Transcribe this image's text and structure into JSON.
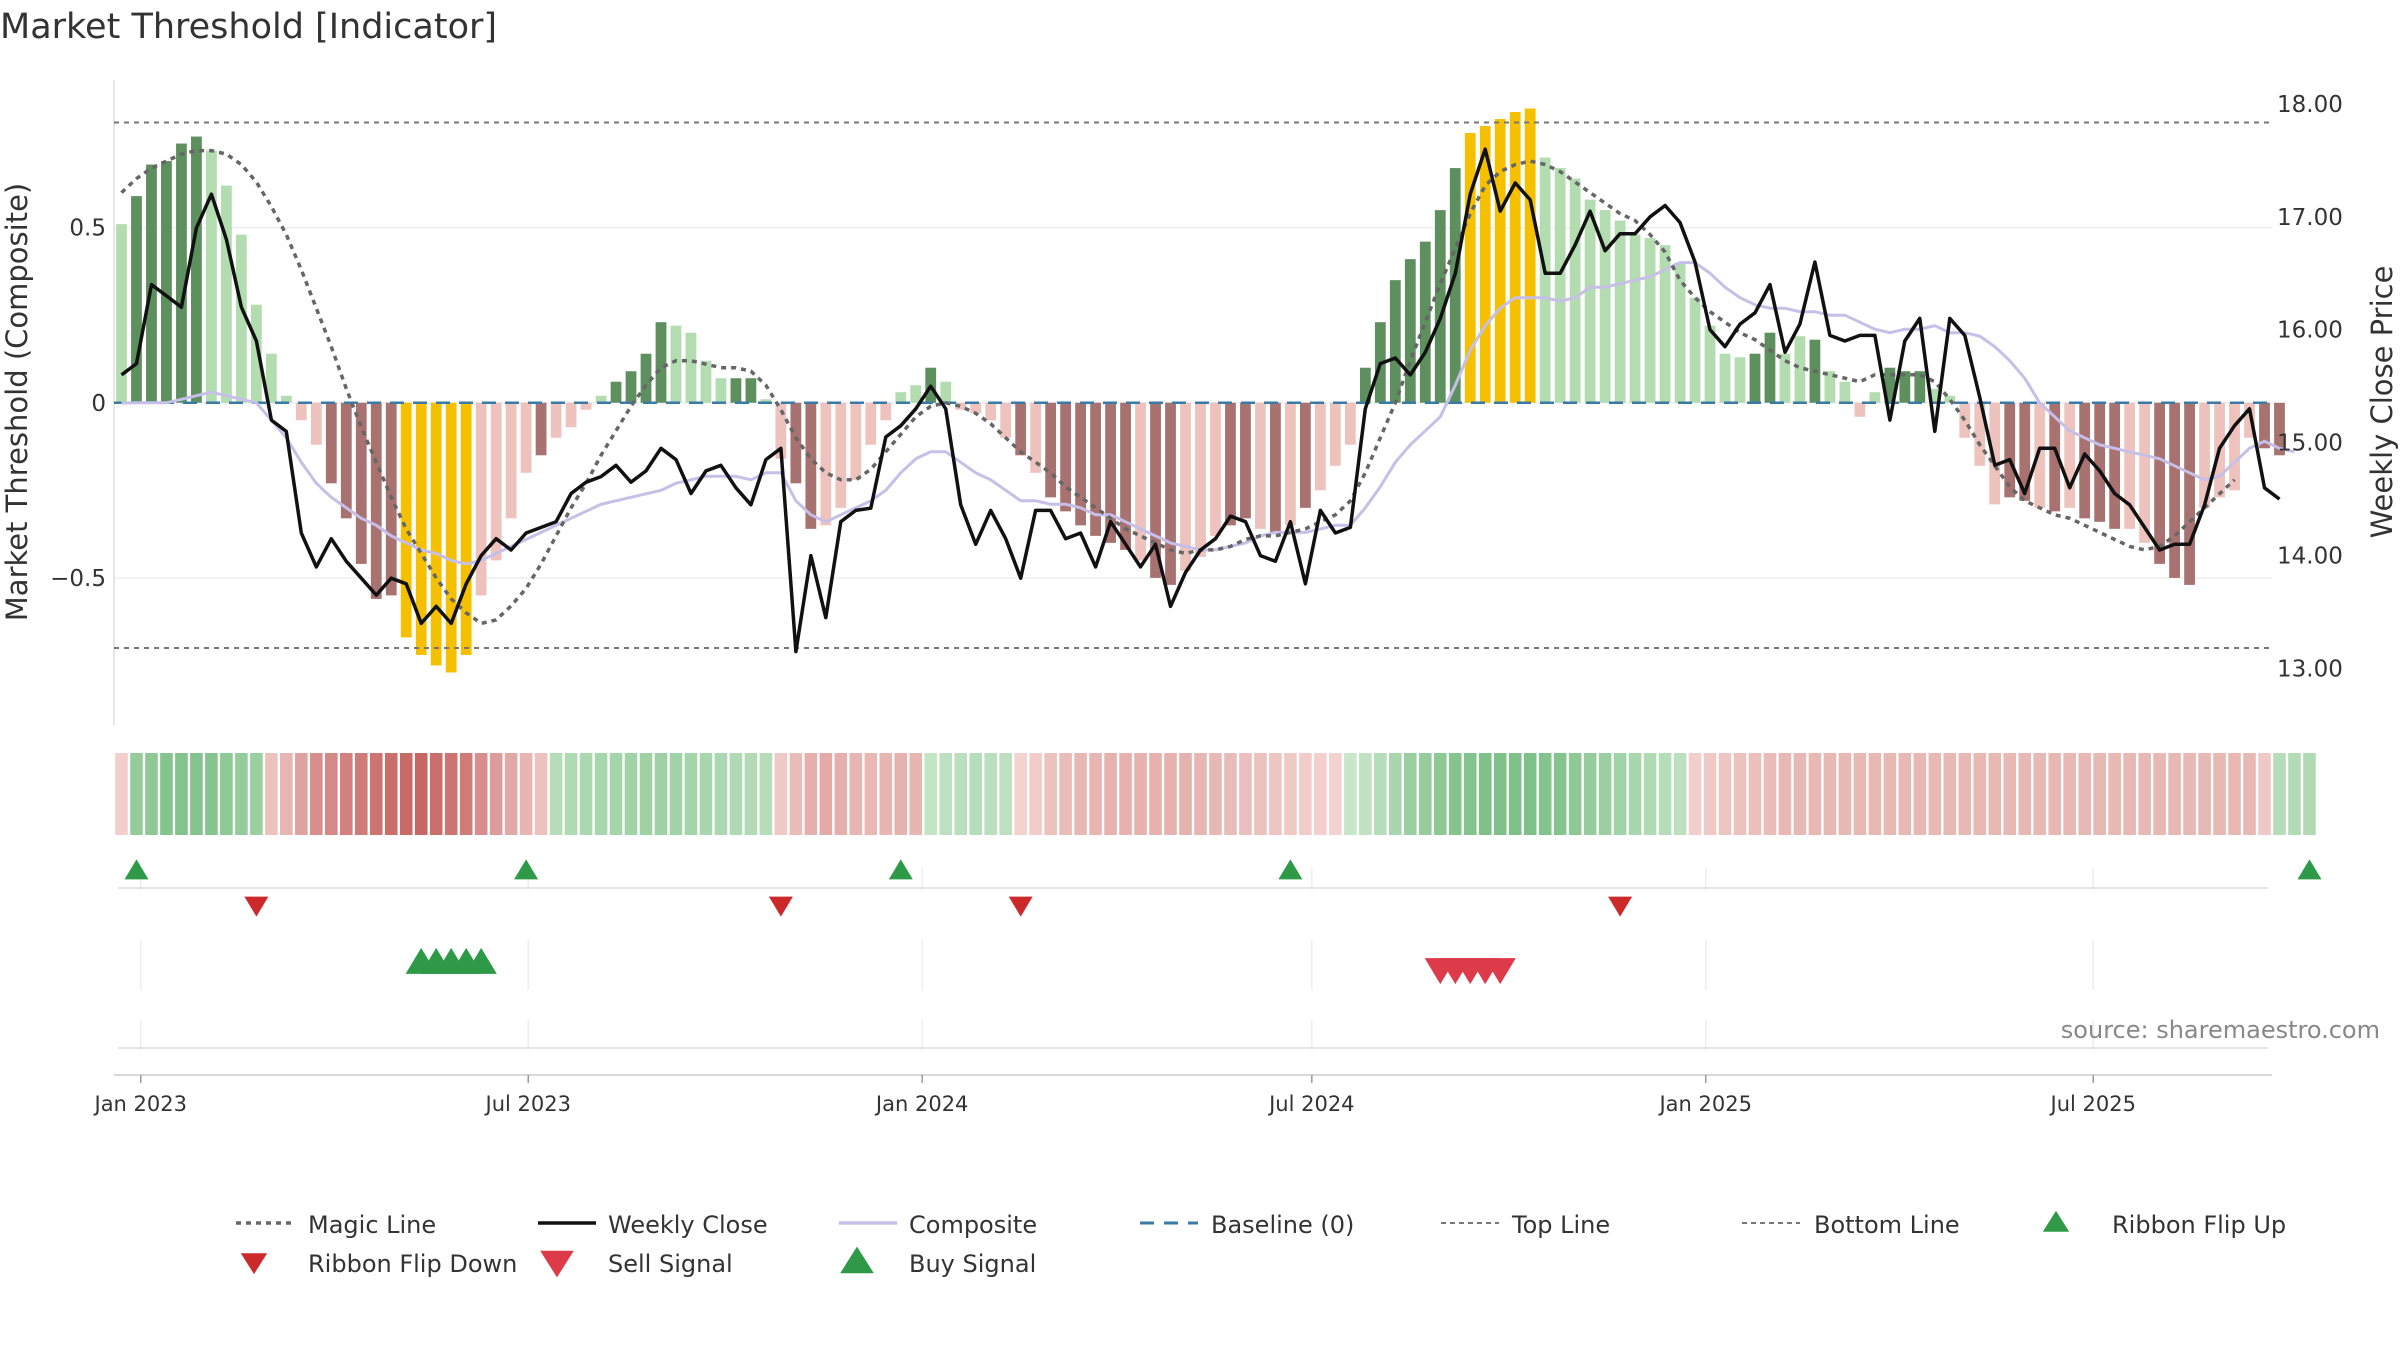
{
  "chart_data": {
    "type": "bar",
    "title": "Market Threshold [Indicator]",
    "ylabel_left": "Market Threshold (Composite)",
    "ylabel_right": "Weekly Close Price",
    "source": "source: sharemaestro.com",
    "left_axis": {
      "ticks": [
        0.5,
        0,
        -0.5
      ],
      "tick_labels": [
        "0.5",
        "0",
        "−0.5"
      ],
      "ylim": [
        -0.92,
        0.95
      ]
    },
    "right_axis": {
      "ticks": [
        18,
        17,
        16,
        15,
        14,
        13
      ],
      "tick_labels": [
        "18.00",
        "17.00",
        "16.00",
        "15.00",
        "14.00",
        "13.00"
      ],
      "ylim": [
        12.5,
        18.3
      ]
    },
    "x_axis": {
      "type": "date",
      "start": "2022-12-23",
      "weeks": 144,
      "ticks": [
        {
          "date": "2023-01-01",
          "label": "Jan 2023"
        },
        {
          "date": "2023-07-01",
          "label": "Jul 2023"
        },
        {
          "date": "2024-01-01",
          "label": "Jan 2024"
        },
        {
          "date": "2024-07-01",
          "label": "Jul 2024"
        },
        {
          "date": "2025-01-01",
          "label": "Jan 2025"
        },
        {
          "date": "2025-07-01",
          "label": "Jul 2025"
        }
      ]
    },
    "reference_lines": {
      "top_line": 0.8,
      "bottom_line": -0.7,
      "baseline": 0
    },
    "colors": {
      "pos_strong": "#5e8f5e",
      "pos_weak": "#b3dcb0",
      "neg_strong": "#a87270",
      "neg_weak": "#eec3bd",
      "extreme": "#f5c000",
      "close": "#111111",
      "composite": "#c6bfe8",
      "magic": "#666666",
      "baseline": "#3a7aa5",
      "ref": "#777777",
      "flip_up": "#2e9a47",
      "flip_down": "#cc2a2a",
      "buy": "#2e9a47",
      "sell": "#dd3a4a"
    },
    "bars": [
      {
        "v": 0.51,
        "c": "w"
      },
      {
        "v": 0.59,
        "c": "s"
      },
      {
        "v": 0.68,
        "c": "s"
      },
      {
        "v": 0.69,
        "c": "s"
      },
      {
        "v": 0.74,
        "c": "s"
      },
      {
        "v": 0.76,
        "c": "s"
      },
      {
        "v": 0.72,
        "c": "w"
      },
      {
        "v": 0.62,
        "c": "w"
      },
      {
        "v": 0.48,
        "c": "w"
      },
      {
        "v": 0.28,
        "c": "w"
      },
      {
        "v": 0.14,
        "c": "w"
      },
      {
        "v": 0.02,
        "c": "w"
      },
      {
        "v": -0.05,
        "c": "w"
      },
      {
        "v": -0.12,
        "c": "w"
      },
      {
        "v": -0.23,
        "c": "s"
      },
      {
        "v": -0.33,
        "c": "s"
      },
      {
        "v": -0.46,
        "c": "s"
      },
      {
        "v": -0.56,
        "c": "s"
      },
      {
        "v": -0.55,
        "c": "s"
      },
      {
        "v": -0.67,
        "c": "e"
      },
      {
        "v": -0.72,
        "c": "e"
      },
      {
        "v": -0.75,
        "c": "e"
      },
      {
        "v": -0.77,
        "c": "e"
      },
      {
        "v": -0.72,
        "c": "e"
      },
      {
        "v": -0.55,
        "c": "w"
      },
      {
        "v": -0.45,
        "c": "w"
      },
      {
        "v": -0.33,
        "c": "w"
      },
      {
        "v": -0.2,
        "c": "w"
      },
      {
        "v": -0.15,
        "c": "s"
      },
      {
        "v": -0.1,
        "c": "w"
      },
      {
        "v": -0.07,
        "c": "w"
      },
      {
        "v": -0.02,
        "c": "w"
      },
      {
        "v": 0.02,
        "c": "w"
      },
      {
        "v": 0.06,
        "c": "s"
      },
      {
        "v": 0.09,
        "c": "s"
      },
      {
        "v": 0.14,
        "c": "s"
      },
      {
        "v": 0.23,
        "c": "s"
      },
      {
        "v": 0.22,
        "c": "w"
      },
      {
        "v": 0.2,
        "c": "w"
      },
      {
        "v": 0.12,
        "c": "w"
      },
      {
        "v": 0.07,
        "c": "w"
      },
      {
        "v": 0.07,
        "c": "s"
      },
      {
        "v": 0.07,
        "c": "s"
      },
      {
        "v": 0.01,
        "c": "w"
      },
      {
        "v": -0.16,
        "c": "w"
      },
      {
        "v": -0.23,
        "c": "s"
      },
      {
        "v": -0.36,
        "c": "s"
      },
      {
        "v": -0.35,
        "c": "w"
      },
      {
        "v": -0.3,
        "c": "w"
      },
      {
        "v": -0.22,
        "c": "w"
      },
      {
        "v": -0.12,
        "c": "w"
      },
      {
        "v": -0.05,
        "c": "w"
      },
      {
        "v": 0.03,
        "c": "w"
      },
      {
        "v": 0.05,
        "c": "w"
      },
      {
        "v": 0.1,
        "c": "s"
      },
      {
        "v": 0.06,
        "c": "w"
      },
      {
        "v": -0.02,
        "c": "w"
      },
      {
        "v": -0.03,
        "c": "w"
      },
      {
        "v": -0.05,
        "c": "w"
      },
      {
        "v": -0.1,
        "c": "w"
      },
      {
        "v": -0.15,
        "c": "s"
      },
      {
        "v": -0.2,
        "c": "w"
      },
      {
        "v": -0.27,
        "c": "s"
      },
      {
        "v": -0.31,
        "c": "s"
      },
      {
        "v": -0.35,
        "c": "s"
      },
      {
        "v": -0.38,
        "c": "s"
      },
      {
        "v": -0.4,
        "c": "s"
      },
      {
        "v": -0.42,
        "c": "s"
      },
      {
        "v": -0.45,
        "c": "w"
      },
      {
        "v": -0.5,
        "c": "s"
      },
      {
        "v": -0.52,
        "c": "s"
      },
      {
        "v": -0.48,
        "c": "w"
      },
      {
        "v": -0.44,
        "c": "w"
      },
      {
        "v": -0.38,
        "c": "w"
      },
      {
        "v": -0.35,
        "c": "s"
      },
      {
        "v": -0.33,
        "c": "s"
      },
      {
        "v": -0.36,
        "c": "w"
      },
      {
        "v": -0.37,
        "c": "s"
      },
      {
        "v": -0.35,
        "c": "w"
      },
      {
        "v": -0.3,
        "c": "s"
      },
      {
        "v": -0.25,
        "c": "w"
      },
      {
        "v": -0.18,
        "c": "w"
      },
      {
        "v": -0.12,
        "c": "w"
      },
      {
        "v": 0.1,
        "c": "s"
      },
      {
        "v": 0.23,
        "c": "s"
      },
      {
        "v": 0.35,
        "c": "s"
      },
      {
        "v": 0.41,
        "c": "s"
      },
      {
        "v": 0.46,
        "c": "s"
      },
      {
        "v": 0.55,
        "c": "s"
      },
      {
        "v": 0.67,
        "c": "s"
      },
      {
        "v": 0.77,
        "c": "e"
      },
      {
        "v": 0.79,
        "c": "e"
      },
      {
        "v": 0.81,
        "c": "e"
      },
      {
        "v": 0.83,
        "c": "e"
      },
      {
        "v": 0.84,
        "c": "e"
      },
      {
        "v": 0.7,
        "c": "w"
      },
      {
        "v": 0.67,
        "c": "w"
      },
      {
        "v": 0.64,
        "c": "w"
      },
      {
        "v": 0.58,
        "c": "w"
      },
      {
        "v": 0.55,
        "c": "w"
      },
      {
        "v": 0.52,
        "c": "w"
      },
      {
        "v": 0.48,
        "c": "w"
      },
      {
        "v": 0.47,
        "c": "w"
      },
      {
        "v": 0.45,
        "c": "w"
      },
      {
        "v": 0.4,
        "c": "w"
      },
      {
        "v": 0.3,
        "c": "w"
      },
      {
        "v": 0.22,
        "c": "w"
      },
      {
        "v": 0.14,
        "c": "w"
      },
      {
        "v": 0.13,
        "c": "w"
      },
      {
        "v": 0.14,
        "c": "s"
      },
      {
        "v": 0.2,
        "c": "s"
      },
      {
        "v": 0.14,
        "c": "w"
      },
      {
        "v": 0.19,
        "c": "w"
      },
      {
        "v": 0.18,
        "c": "s"
      },
      {
        "v": 0.09,
        "c": "w"
      },
      {
        "v": 0.06,
        "c": "w"
      },
      {
        "v": -0.04,
        "c": "w"
      },
      {
        "v": 0.03,
        "c": "w"
      },
      {
        "v": 0.1,
        "c": "s"
      },
      {
        "v": 0.09,
        "c": "s"
      },
      {
        "v": 0.09,
        "c": "s"
      },
      {
        "v": 0.04,
        "c": "w"
      },
      {
        "v": 0.02,
        "c": "w"
      },
      {
        "v": -0.1,
        "c": "w"
      },
      {
        "v": -0.18,
        "c": "w"
      },
      {
        "v": -0.29,
        "c": "w"
      },
      {
        "v": -0.27,
        "c": "s"
      },
      {
        "v": -0.28,
        "c": "s"
      },
      {
        "v": -0.3,
        "c": "w"
      },
      {
        "v": -0.31,
        "c": "s"
      },
      {
        "v": -0.3,
        "c": "w"
      },
      {
        "v": -0.33,
        "c": "s"
      },
      {
        "v": -0.34,
        "c": "s"
      },
      {
        "v": -0.36,
        "c": "s"
      },
      {
        "v": -0.36,
        "c": "w"
      },
      {
        "v": -0.4,
        "c": "w"
      },
      {
        "v": -0.46,
        "c": "s"
      },
      {
        "v": -0.5,
        "c": "s"
      },
      {
        "v": -0.52,
        "c": "s"
      },
      {
        "v": -0.3,
        "c": "w"
      },
      {
        "v": -0.27,
        "c": "w"
      },
      {
        "v": -0.25,
        "c": "w"
      },
      {
        "v": -0.1,
        "c": "w"
      },
      {
        "v": -0.13,
        "c": "s"
      },
      {
        "v": -0.15,
        "c": "s"
      }
    ],
    "weekly_close": [
      15.6,
      15.7,
      16.4,
      16.3,
      16.2,
      16.9,
      17.2,
      16.8,
      16.2,
      15.9,
      15.2,
      15.1,
      14.2,
      13.9,
      14.15,
      13.95,
      13.8,
      13.65,
      13.8,
      13.75,
      13.4,
      13.55,
      13.4,
      13.75,
      14.0,
      14.15,
      14.05,
      14.2,
      14.25,
      14.3,
      14.55,
      14.65,
      14.7,
      14.8,
      14.65,
      14.75,
      14.95,
      14.85,
      14.55,
      14.75,
      14.8,
      14.6,
      14.45,
      14.85,
      14.95,
      13.15,
      14.0,
      13.45,
      14.3,
      14.4,
      14.42,
      15.05,
      15.15,
      15.3,
      15.5,
      15.3,
      14.45,
      14.1,
      14.4,
      14.15,
      13.8,
      14.4,
      14.4,
      14.15,
      14.2,
      13.9,
      14.3,
      14.1,
      13.9,
      14.1,
      13.55,
      13.85,
      14.05,
      14.15,
      14.35,
      14.3,
      14.0,
      13.95,
      14.3,
      13.75,
      14.4,
      14.2,
      14.25,
      15.3,
      15.7,
      15.75,
      15.6,
      15.8,
      16.1,
      16.5,
      17.2,
      17.6,
      17.05,
      17.3,
      17.15,
      16.5,
      16.5,
      16.75,
      17.05,
      16.7,
      16.85,
      16.85,
      17.0,
      17.1,
      16.95,
      16.6,
      16.0,
      15.85,
      16.05,
      16.15,
      16.4,
      15.8,
      16.05,
      16.6,
      15.95,
      15.9,
      15.95,
      15.95,
      15.2,
      15.9,
      16.1,
      15.1,
      16.1,
      15.95,
      15.4,
      14.8,
      14.85,
      14.55,
      14.95,
      14.95,
      14.6,
      14.9,
      14.75,
      14.55,
      14.45,
      14.25,
      14.05,
      14.1,
      14.1,
      14.45,
      14.95,
      15.15,
      15.3,
      14.6,
      14.5
    ],
    "composite": [
      -0.001,
      0.0,
      0.0,
      0.0,
      0.01,
      0.02,
      0.03,
      0.02,
      0.01,
      0.0,
      -0.05,
      -0.1,
      -0.17,
      -0.23,
      -0.27,
      -0.3,
      -0.33,
      -0.35,
      -0.38,
      -0.4,
      -0.42,
      -0.43,
      -0.45,
      -0.46,
      -0.45,
      -0.43,
      -0.41,
      -0.39,
      -0.37,
      -0.35,
      -0.33,
      -0.31,
      -0.29,
      -0.28,
      -0.27,
      -0.26,
      -0.25,
      -0.23,
      -0.22,
      -0.21,
      -0.21,
      -0.21,
      -0.22,
      -0.2,
      -0.2,
      -0.28,
      -0.32,
      -0.34,
      -0.32,
      -0.3,
      -0.28,
      -0.25,
      -0.2,
      -0.16,
      -0.14,
      -0.14,
      -0.17,
      -0.2,
      -0.22,
      -0.25,
      -0.28,
      -0.28,
      -0.29,
      -0.29,
      -0.3,
      -0.32,
      -0.32,
      -0.34,
      -0.36,
      -0.38,
      -0.4,
      -0.41,
      -0.42,
      -0.42,
      -0.41,
      -0.4,
      -0.38,
      -0.37,
      -0.37,
      -0.37,
      -0.36,
      -0.35,
      -0.35,
      -0.3,
      -0.24,
      -0.17,
      -0.12,
      -0.08,
      -0.04,
      0.05,
      0.15,
      0.22,
      0.27,
      0.3,
      0.3,
      0.3,
      0.29,
      0.3,
      0.33,
      0.33,
      0.34,
      0.35,
      0.36,
      0.38,
      0.4,
      0.4,
      0.37,
      0.33,
      0.3,
      0.28,
      0.27,
      0.27,
      0.26,
      0.26,
      0.25,
      0.25,
      0.23,
      0.21,
      0.2,
      0.21,
      0.21,
      0.22,
      0.2,
      0.2,
      0.19,
      0.16,
      0.12,
      0.07,
      0.0,
      -0.04,
      -0.08,
      -0.1,
      -0.12,
      -0.13,
      -0.14,
      -0.15,
      -0.16,
      -0.18,
      -0.2,
      -0.22,
      -0.21,
      -0.17,
      -0.13,
      -0.11,
      -0.13,
      -0.14
    ],
    "magic_line": [
      0.6,
      0.64,
      0.67,
      0.69,
      0.71,
      0.72,
      0.72,
      0.71,
      0.68,
      0.63,
      0.56,
      0.48,
      0.38,
      0.27,
      0.16,
      0.04,
      -0.07,
      -0.17,
      -0.27,
      -0.36,
      -0.43,
      -0.5,
      -0.56,
      -0.6,
      -0.63,
      -0.62,
      -0.58,
      -0.53,
      -0.46,
      -0.38,
      -0.3,
      -0.23,
      -0.15,
      -0.08,
      -0.01,
      0.05,
      0.1,
      0.12,
      0.12,
      0.11,
      0.1,
      0.1,
      0.09,
      0.05,
      -0.02,
      -0.1,
      -0.16,
      -0.2,
      -0.22,
      -0.22,
      -0.19,
      -0.14,
      -0.09,
      -0.04,
      -0.01,
      0.0,
      -0.01,
      -0.03,
      -0.06,
      -0.1,
      -0.14,
      -0.17,
      -0.2,
      -0.24,
      -0.27,
      -0.3,
      -0.33,
      -0.36,
      -0.38,
      -0.4,
      -0.42,
      -0.43,
      -0.42,
      -0.42,
      -0.41,
      -0.39,
      -0.38,
      -0.38,
      -0.37,
      -0.36,
      -0.34,
      -0.32,
      -0.28,
      -0.2,
      -0.1,
      0.0,
      0.12,
      0.23,
      0.34,
      0.44,
      0.54,
      0.62,
      0.66,
      0.68,
      0.69,
      0.68,
      0.66,
      0.63,
      0.6,
      0.57,
      0.54,
      0.52,
      0.48,
      0.43,
      0.35,
      0.3,
      0.26,
      0.23,
      0.2,
      0.18,
      0.15,
      0.12,
      0.1,
      0.09,
      0.08,
      0.07,
      0.06,
      0.08,
      0.08,
      0.08,
      0.08,
      0.06,
      0.01,
      -0.05,
      -0.12,
      -0.18,
      -0.24,
      -0.28,
      -0.3,
      -0.32,
      -0.33,
      -0.35,
      -0.37,
      -0.39,
      -0.41,
      -0.42,
      -0.41,
      -0.38,
      -0.34,
      -0.3,
      -0.26,
      -0.22
    ],
    "ribbon": [
      -0.1,
      0.5,
      0.55,
      0.6,
      0.62,
      0.62,
      0.6,
      0.55,
      0.5,
      0.45,
      -0.2,
      -0.3,
      -0.45,
      -0.6,
      -0.65,
      -0.7,
      -0.75,
      -0.8,
      -0.85,
      -0.88,
      -0.9,
      -0.85,
      -0.8,
      -0.75,
      -0.6,
      -0.5,
      -0.4,
      -0.3,
      -0.2,
      0.25,
      0.3,
      0.33,
      0.35,
      0.38,
      0.4,
      0.42,
      0.42,
      0.4,
      0.38,
      0.35,
      0.33,
      0.3,
      0.28,
      0.25,
      -0.15,
      -0.25,
      -0.35,
      -0.38,
      -0.35,
      -0.3,
      -0.28,
      -0.3,
      -0.32,
      -0.3,
      0.15,
      0.2,
      0.22,
      0.25,
      0.22,
      0.2,
      -0.08,
      -0.12,
      -0.2,
      -0.25,
      -0.28,
      -0.3,
      -0.32,
      -0.33,
      -0.33,
      -0.33,
      -0.33,
      -0.32,
      -0.3,
      -0.28,
      -0.25,
      -0.22,
      -0.2,
      -0.18,
      -0.15,
      -0.12,
      -0.1,
      -0.08,
      0.12,
      0.18,
      0.25,
      0.35,
      0.45,
      0.5,
      0.55,
      0.6,
      0.62,
      0.65,
      0.65,
      0.65,
      0.65,
      0.62,
      0.6,
      0.55,
      0.5,
      0.45,
      0.4,
      0.35,
      0.3,
      0.25,
      0.2,
      -0.1,
      -0.15,
      -0.18,
      -0.2,
      -0.22,
      -0.25,
      -0.28,
      -0.28,
      -0.28,
      -0.28,
      -0.28,
      -0.28,
      -0.28,
      -0.28,
      -0.28,
      -0.28,
      -0.28,
      -0.28,
      -0.28,
      -0.28,
      -0.28,
      -0.28,
      -0.28,
      -0.28,
      -0.28,
      -0.28,
      -0.28,
      -0.28,
      -0.28,
      -0.28,
      -0.28,
      -0.28,
      -0.28,
      -0.28,
      -0.28,
      -0.28,
      -0.28,
      -0.28,
      -0.15,
      0.25,
      0.28,
      0.3
    ],
    "ribbon_flip_up": [
      "2022-12-30",
      "2023-06-30",
      "2023-12-22",
      "2024-06-21",
      "2025-10-10"
    ],
    "ribbon_flip_down": [
      "2023-02-24",
      "2023-10-27",
      "2024-02-16",
      "2024-11-22"
    ],
    "buy_signals": [
      "2023-05-12",
      "2023-05-19",
      "2023-05-26",
      "2023-06-02",
      "2023-06-09"
    ],
    "sell_signals": [
      "2024-08-30",
      "2024-09-06",
      "2024-09-13",
      "2024-09-20",
      "2024-09-27"
    ],
    "legend": [
      {
        "key": "magic",
        "label": "Magic Line",
        "symbol": "dotted"
      },
      {
        "key": "close",
        "label": "Weekly Close",
        "symbol": "solid"
      },
      {
        "key": "composite",
        "label": "Composite",
        "symbol": "solid-light"
      },
      {
        "key": "baseline",
        "label": "Baseline (0)",
        "symbol": "dashed"
      },
      {
        "key": "top",
        "label": "Top Line",
        "symbol": "dotted-light"
      },
      {
        "key": "bottom",
        "label": "Bottom Line",
        "symbol": "dotted-light"
      },
      {
        "key": "flip_up",
        "label": "Ribbon Flip Up",
        "symbol": "triangle-up"
      },
      {
        "key": "flip_down",
        "label": "Ribbon Flip Down",
        "symbol": "triangle-down"
      },
      {
        "key": "sell",
        "label": "Sell Signal",
        "symbol": "triangle-down-big"
      },
      {
        "key": "buy",
        "label": "Buy Signal",
        "symbol": "triangle-up-big"
      }
    ]
  }
}
